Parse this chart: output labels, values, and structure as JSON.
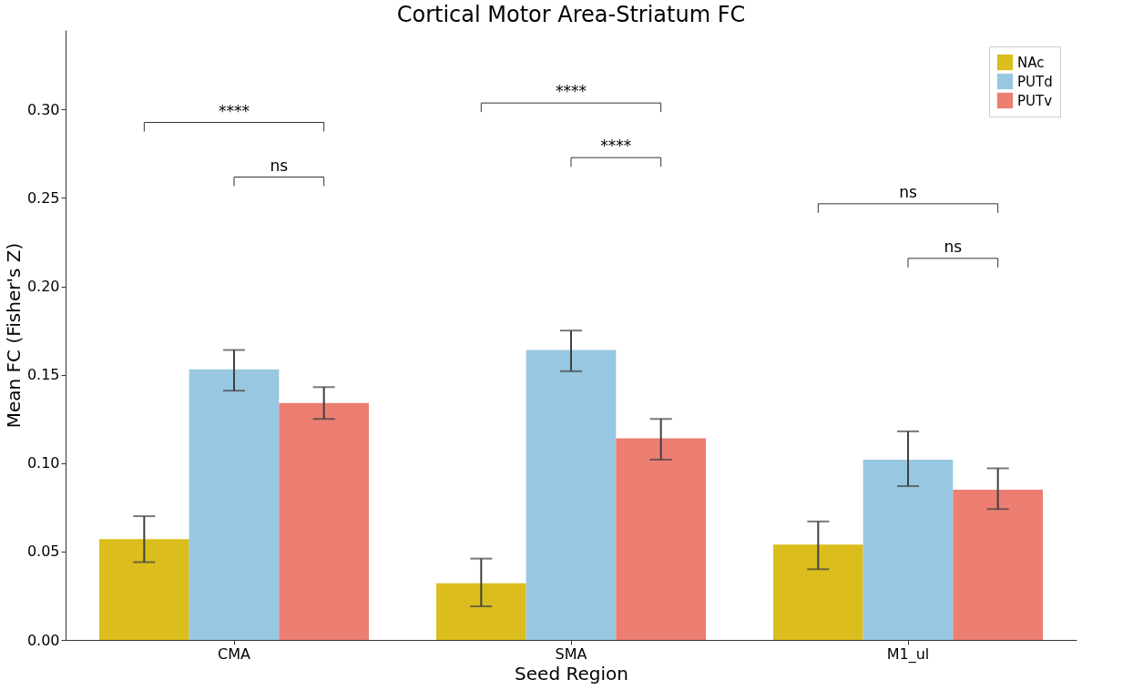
{
  "chart_data": {
    "type": "bar",
    "title": "Cortical Motor Area-Striatum FC",
    "xlabel": "Seed Region",
    "ylabel": "Mean FC (Fisher's Z)",
    "categories": [
      "CMA",
      "SMA",
      "M1_ul"
    ],
    "series": [
      {
        "name": "NAc",
        "color": "#dbbe1e",
        "values": [
          0.057,
          0.032,
          0.054
        ],
        "errors": [
          [
            0.044,
            0.07
          ],
          [
            0.019,
            0.046
          ],
          [
            0.04,
            0.067
          ]
        ]
      },
      {
        "name": "PUTd",
        "color": "#98c8e1",
        "values": [
          0.153,
          0.164,
          0.102
        ],
        "errors": [
          [
            0.141,
            0.164
          ],
          [
            0.152,
            0.175
          ],
          [
            0.087,
            0.118
          ]
        ]
      },
      {
        "name": "PUTv",
        "color": "#ec7e72",
        "values": [
          0.134,
          0.114,
          0.085
        ],
        "errors": [
          [
            0.125,
            0.143
          ],
          [
            0.102,
            0.125
          ],
          [
            0.074,
            0.097
          ]
        ]
      }
    ],
    "ylim": [
      0,
      0.345
    ],
    "yticks": [
      {
        "value": 0,
        "label": "0.00"
      },
      0.05,
      {
        "value": 0.1,
        "label": "0.10"
      },
      0.15,
      {
        "value": 0.2,
        "label": "0.20"
      },
      0.25,
      {
        "value": 0.3,
        "label": "0.30"
      }
    ],
    "annotations": [
      "****",
      "ns",
      "****",
      "****",
      "ns",
      "ns"
    ],
    "legend": "top right",
    "grid": false
  }
}
